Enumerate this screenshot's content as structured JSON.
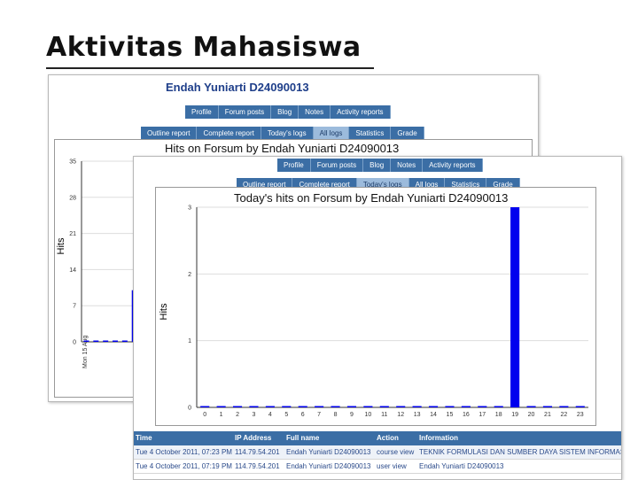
{
  "slide": {
    "title": "Aktivitas Mahasiswa"
  },
  "profile": {
    "user_name": "Endah Yuniarti D24090013",
    "primary_tabs": [
      "Profile",
      "Forum posts",
      "Blog",
      "Notes",
      "Activity reports"
    ],
    "secondary_tabs": [
      "Outline report",
      "Complete report",
      "Today's logs",
      "All logs",
      "Statistics",
      "Grade"
    ],
    "active_tab_back": "All logs",
    "active_tab_front": "Today's logs"
  },
  "colors": {
    "tab_bg": "#3b6ea5",
    "tab_active_bg": "#9cbbdc",
    "bar": "#0000ee",
    "name": "#1f3f8a"
  },
  "chart_data": [
    {
      "type": "bar",
      "title": "Hits on Forsum by Endah Yuniarti D24090013",
      "ylabel": "Hits",
      "ylim": [
        0,
        35
      ],
      "yticks": [
        0,
        7,
        14,
        21,
        28,
        35
      ],
      "first_category": "Mon 15 Aug",
      "values": [
        0,
        0,
        0,
        0,
        0,
        10,
        0
      ],
      "grid": true
    },
    {
      "type": "bar",
      "title": "Today's hits on Forsum by Endah Yuniarti D24090013",
      "ylabel": "Hits",
      "ylim": [
        0,
        3
      ],
      "yticks": [
        0,
        1,
        2,
        3
      ],
      "categories": [
        "0",
        "1",
        "2",
        "3",
        "4",
        "5",
        "6",
        "7",
        "8",
        "9",
        "10",
        "11",
        "12",
        "13",
        "14",
        "15",
        "16",
        "17",
        "18",
        "19",
        "20",
        "21",
        "22",
        "23"
      ],
      "values": [
        0,
        0,
        0,
        0,
        0,
        0,
        0,
        0,
        0,
        0,
        0,
        0,
        0,
        0,
        0,
        0,
        0,
        0,
        0,
        3,
        0,
        0,
        0,
        0
      ],
      "grid": true
    }
  ],
  "log_table": {
    "headers": [
      "Time",
      "IP Address",
      "Full name",
      "Action",
      "Information"
    ],
    "rows": [
      [
        "Tue 4 October 2011, 07:23 PM",
        "114.79.54.201",
        "Endah Yuniarti D24090013",
        "course view",
        "TEKNIK FORMULASI DAN SUMBER DAYA SISTEM INFORMASI PANGAN"
      ],
      [
        "Tue 4 October 2011, 07:19 PM",
        "114.79.54.201",
        "Endah Yuniarti D24090013",
        "user view",
        "Endah Yuniarti D24090013"
      ]
    ]
  }
}
